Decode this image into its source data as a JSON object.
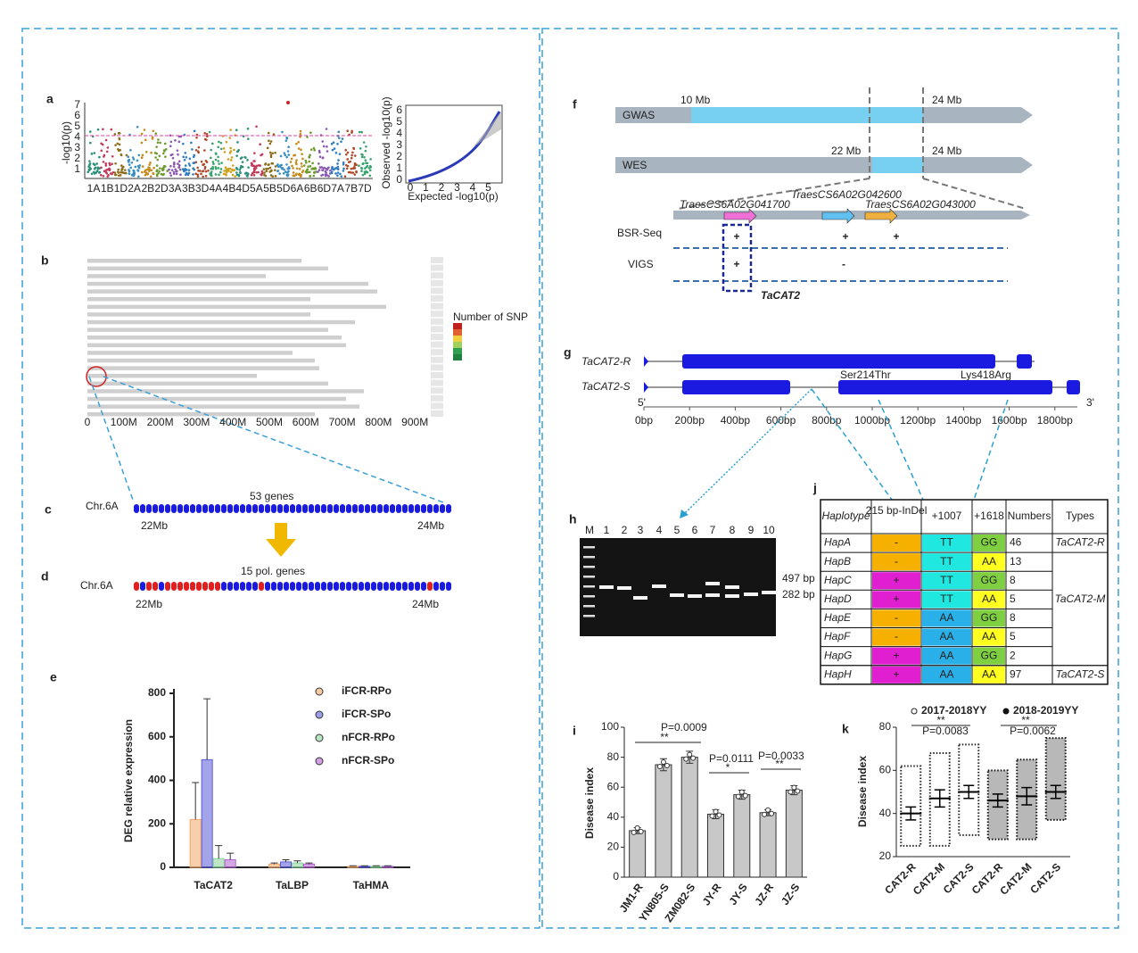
{
  "panels": {
    "a": {
      "label": "a",
      "xlabels": [
        "1A",
        "1B",
        "1D",
        "2A",
        "2B",
        "2D",
        "3A",
        "3B",
        "3D",
        "4A",
        "4B",
        "4D",
        "5A",
        "5B",
        "5D",
        "6A",
        "6B",
        "6D",
        "7A",
        "7B",
        "7D"
      ],
      "ylabel": "-log10(p)",
      "yticks": [
        "1",
        "2",
        "3",
        "4",
        "5",
        "6",
        "7"
      ],
      "qq_ylabel": "Observed -log10(p)",
      "qq_xlabel": "Expected -log10(p)",
      "qq_xticks": [
        "0",
        "1",
        "2",
        "3",
        "4",
        "5"
      ],
      "qq_yticks": [
        "0",
        "1",
        "2",
        "3",
        "4",
        "5",
        "6"
      ]
    },
    "b": {
      "label": "b",
      "xticks": [
        "0",
        "100M",
        "200M",
        "300M",
        "400M",
        "500M",
        "600M",
        "700M",
        "800M",
        "900M"
      ],
      "legend_title": "Number of SNP"
    },
    "c": {
      "label": "c",
      "chr": "Chr.6A",
      "genes": "53 genes",
      "start": "22Mb",
      "end": "24Mb"
    },
    "d": {
      "label": "d",
      "chr": "Chr.6A",
      "genes": "15  pol. genes",
      "start": "22Mb",
      "end": "24Mb"
    },
    "e": {
      "label": "e"
    },
    "f": {
      "label": "f",
      "gwas": "GWAS",
      "gwas_start": "10 Mb",
      "gwas_end": "24 Mb",
      "wes": "WES",
      "wes_start": "22 Mb",
      "wes_end": "24 Mb",
      "gene1": "TraesCS6A02G041700",
      "gene2": "TraesCS6A02G042600",
      "gene3": "TraesCS6A02G043000",
      "bsr": "BSR-Seq",
      "bsr_marks": [
        "+",
        "+",
        "+"
      ],
      "vigs": "VIGS",
      "vigs_marks": [
        "+",
        "-"
      ],
      "candidate": "TaCAT2"
    },
    "g": {
      "label": "g",
      "allele_r": "TaCAT2-R",
      "allele_s": "TaCAT2-S",
      "snp1": "Ser214Thr",
      "snp2": "Lys418Arg",
      "five": "5'",
      "three": "3'",
      "xticks": [
        "0bp",
        "200bp",
        "400bp",
        "600bp",
        "800bp",
        "1000bp",
        "1200bp",
        "1400bp",
        "1600bp",
        "1800bp"
      ]
    },
    "h": {
      "label": "h",
      "lanes": [
        "M",
        "1",
        "2",
        "3",
        "4",
        "5",
        "6",
        "7",
        "8",
        "9",
        "10"
      ],
      "band1": "497 bp",
      "band2": "282 bp"
    },
    "i": {
      "label": "i"
    },
    "j": {
      "label": "j",
      "header": [
        "Haplotype",
        "215 bp-InDel",
        "+1007",
        "+1618",
        "Numbers",
        "Types"
      ],
      "rows": [
        [
          "HapA",
          "-",
          "TT",
          "GG",
          "46",
          "TaCAT2-R"
        ],
        [
          "HapB",
          "-",
          "TT",
          "AA",
          "13"
        ],
        [
          "HapC",
          "+",
          "TT",
          "GG",
          "8"
        ],
        [
          "HapD",
          "+",
          "TT",
          "AA",
          "5"
        ],
        [
          "HapE",
          "-",
          "AA",
          "GG",
          "8"
        ],
        [
          "HapF",
          "-",
          "AA",
          "AA",
          "5"
        ],
        [
          "HapG",
          "+",
          "AA",
          "GG",
          "2"
        ],
        [
          "HapH",
          "+",
          "AA",
          "AA",
          "97",
          "TaCAT2-S"
        ]
      ],
      "merged_type": "TaCAT2-M"
    },
    "k": {
      "label": "k"
    }
  },
  "chart_data": [
    {
      "type": "bar",
      "categories": [
        "TaCAT2",
        "TaLBP",
        "TaHMA"
      ],
      "ylabel": "DEG relative expression",
      "ylim": [
        0,
        800
      ],
      "yticks": [
        0,
        200,
        400,
        600,
        800
      ],
      "series": [
        {
          "name": "iFCR-RPo",
          "color": "#f0a868",
          "values": [
            220,
            15,
            5
          ],
          "errors": [
            170,
            5,
            2
          ]
        },
        {
          "name": "iFCR-SPo",
          "color": "#5a5ad8",
          "values": [
            495,
            25,
            5
          ],
          "errors": [
            280,
            10,
            2
          ]
        },
        {
          "name": "nFCR-RPo",
          "color": "#88d49a",
          "values": [
            40,
            20,
            5
          ],
          "errors": [
            60,
            10,
            2
          ]
        },
        {
          "name": "nFCR-SPo",
          "color": "#b060d0",
          "values": [
            35,
            15,
            5
          ],
          "errors": [
            30,
            5,
            2
          ]
        }
      ]
    },
    {
      "type": "bar",
      "categories": [
        "JM1-R",
        "YN805-S",
        "ZM082-S",
        "JY-R",
        "JY-S",
        "JZ-R",
        "JZ-S"
      ],
      "ylabel": "Disease index",
      "ylim": [
        0,
        100
      ],
      "yticks": [
        0,
        20,
        40,
        60,
        80,
        100
      ],
      "series": [
        {
          "color": "#c8c8c8",
          "values": [
            31,
            75,
            80,
            42,
            55,
            43,
            58
          ],
          "errors": [
            2,
            4,
            4,
            3,
            3,
            2,
            3
          ]
        }
      ],
      "annotations": [
        "P=0.0009",
        "**",
        "P=0.0111",
        "*",
        "P=0.0033",
        "**"
      ]
    },
    {
      "type": "dot",
      "categories": [
        "CAT2-R",
        "CAT2-M",
        "CAT2-S",
        "CAT2-R",
        "CAT2-M",
        "CAT2-S"
      ],
      "ylabel": "Disease index",
      "ylim": [
        20,
        80
      ],
      "yticks": [
        20,
        40,
        60,
        80
      ],
      "series": [
        {
          "name": "2017-2018YY",
          "color": "#222222",
          "filled": false,
          "values": [
            40,
            47,
            50,
            null,
            null,
            null
          ],
          "errors": [
            3,
            4,
            3,
            null,
            null,
            null
          ],
          "min": [
            25,
            25,
            30,
            null,
            null,
            null
          ],
          "max": [
            62,
            68,
            72,
            null,
            null,
            null
          ]
        },
        {
          "name": "2018-2019YY",
          "color": "#111111",
          "filled": true,
          "values": [
            null,
            null,
            null,
            46,
            48,
            50
          ],
          "errors": [
            null,
            null,
            null,
            3,
            4,
            3
          ],
          "min": [
            null,
            null,
            null,
            28,
            28,
            37
          ],
          "max": [
            null,
            null,
            null,
            60,
            65,
            75
          ]
        }
      ],
      "annotations": [
        "**",
        "P=0.0083",
        "**",
        "P=0.0062"
      ]
    }
  ]
}
